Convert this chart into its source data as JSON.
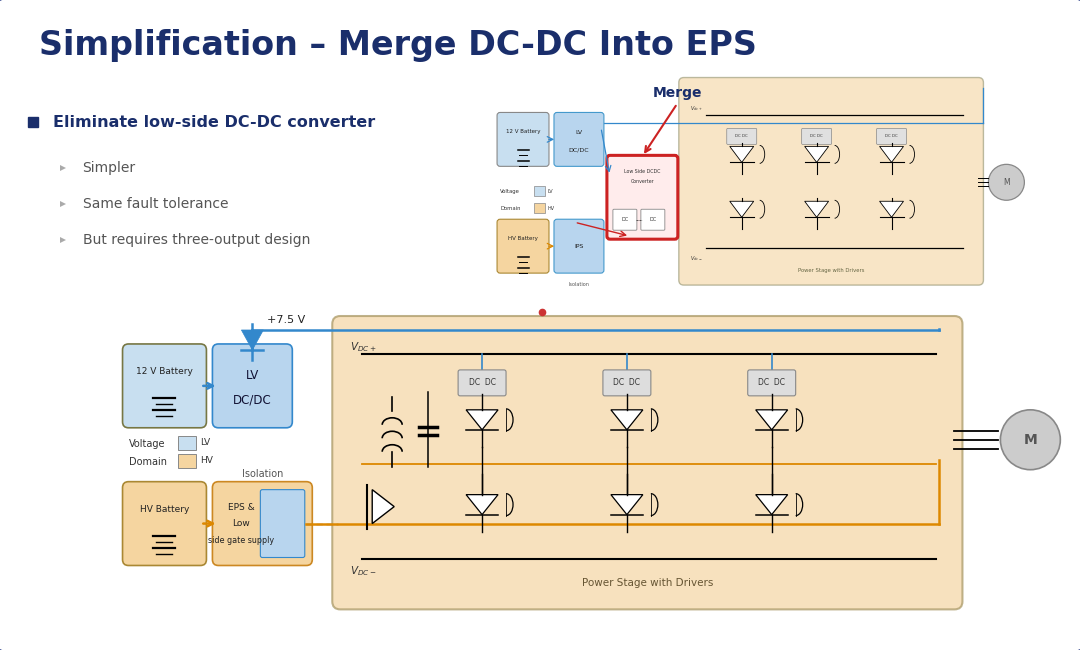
{
  "title": "Simplification – Merge DC-DC Into EPS",
  "title_color": "#1a2e6b",
  "title_fontsize": 24,
  "bg_color": "#dde2ee",
  "slide_bg": "#ffffff",
  "bullet_main": "Eliminate low-side DC-DC converter",
  "bullet_subs": [
    "Simpler",
    "Same fault tolerance",
    "But requires three-output design"
  ],
  "bullet_color": "#1a2e6b",
  "sub_color": "#555555",
  "border_color": "#1a3080",
  "lv_color": "#c8dff0",
  "hv_color": "#f5d5a0",
  "power_stage_fill": "#f5d8a8",
  "box_blue_fill": "#b8d5ee",
  "box_orange_fill": "#f5c870",
  "blue_line": "#3388cc",
  "orange_line": "#dd8800",
  "red_box": "#cc2222",
  "merge_label": "Merge",
  "gray_bg": "#e8e8e8"
}
